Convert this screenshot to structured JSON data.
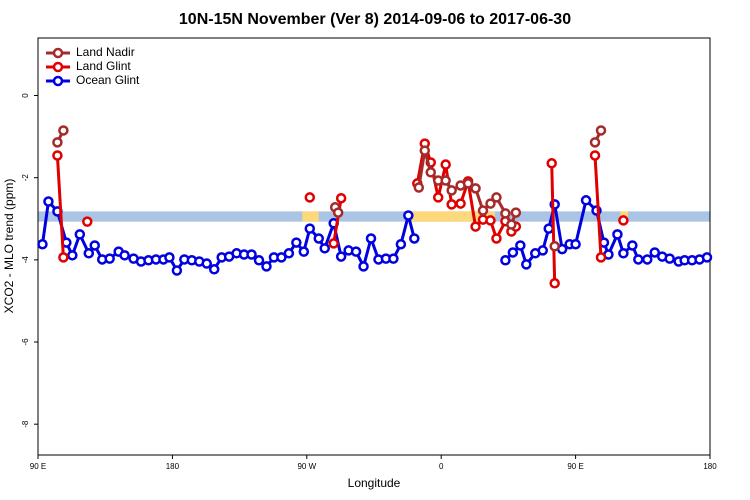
{
  "chart_data": {
    "type": "line",
    "title": "10N-15N November (Ver 8)   2014-09-06 to 2017-06-30",
    "x_label": "Longitude",
    "y_label": "XCO2 - MLO trend (ppm)",
    "xlim": [
      90,
      540
    ],
    "ylim": [
      -8.75,
      1.4
    ],
    "xticks": [
      {
        "value": 90,
        "label": "90 E"
      },
      {
        "value": 180,
        "label": "180"
      },
      {
        "value": 270,
        "label": "90 W"
      },
      {
        "value": 360,
        "label": "0"
      },
      {
        "value": 450,
        "label": "90 E"
      },
      {
        "value": 540,
        "label": "180"
      }
    ],
    "yticks": [
      0,
      -2,
      -4,
      -6,
      -8
    ],
    "legend": "top-left",
    "band": {
      "ymin": -3.07,
      "ymax": -2.82,
      "color": "#a9c4e4"
    },
    "highlights": {
      "color": "#fdd97c",
      "xranges": [
        [
          267,
          278
        ],
        [
          339,
          396
        ],
        [
          480,
          485
        ]
      ]
    },
    "series": [
      {
        "name": "Land Nadir",
        "color": "#a52a2a",
        "x": [
          103,
          107,
          200,
          289,
          291,
          320,
          345,
          349,
          353,
          358,
          363,
          367,
          373,
          378,
          383,
          388,
          393,
          397,
          403,
          407,
          410,
          420,
          436,
          450,
          463,
          467
        ],
        "values": [
          -1.14,
          -0.85,
          null,
          -2.72,
          -2.85,
          null,
          -2.24,
          -1.34,
          -1.87,
          -2.07,
          -2.07,
          -2.31,
          -2.19,
          -2.14,
          -2.26,
          -2.8,
          -2.63,
          -2.48,
          -2.87,
          -3.14,
          -2.85,
          null,
          -3.67,
          null,
          -1.14,
          -0.85
        ]
      },
      {
        "name": "Land Glint",
        "color": "#e00000",
        "x": [
          103,
          107,
          115,
          123,
          270,
          272,
          280,
          288,
          293,
          320,
          344,
          349,
          353,
          358,
          363,
          367,
          373,
          378,
          383,
          388,
          393,
          397,
          403,
          407,
          410,
          420,
          434,
          436,
          450,
          463,
          467,
          475,
          482
        ],
        "values": [
          -1.46,
          -3.94,
          null,
          -3.07,
          null,
          -2.48,
          null,
          -3.6,
          -2.5,
          null,
          -2.14,
          -1.17,
          -1.63,
          -2.48,
          -1.68,
          -2.65,
          -2.63,
          -2.09,
          -3.19,
          -3.02,
          -3.04,
          -3.48,
          -3.06,
          -3.31,
          -3.19,
          null,
          -1.65,
          -4.57,
          null,
          -1.46,
          -3.94,
          null,
          -3.04
        ]
      },
      {
        "name": "Ocean Glint",
        "color": "#0000e0",
        "x": [
          93,
          97,
          103,
          109,
          113,
          118,
          124,
          128,
          133,
          138,
          144,
          148,
          154,
          159,
          164,
          169,
          174,
          178,
          183,
          188,
          193,
          198,
          203,
          208,
          213,
          218,
          223,
          228,
          233,
          238,
          243,
          248,
          253,
          258,
          263,
          268,
          272,
          278,
          282,
          288,
          293,
          298,
          303,
          308,
          313,
          318,
          323,
          328,
          333,
          338,
          342,
          370,
          403,
          408,
          413,
          417,
          423,
          428,
          432,
          436,
          441,
          446,
          450,
          457,
          464,
          469,
          472,
          478,
          482,
          488,
          492,
          498,
          503,
          508,
          513,
          519,
          523,
          528,
          533,
          538
        ],
        "values": [
          -3.62,
          -2.58,
          -2.82,
          -3.58,
          -3.89,
          -3.38,
          -3.84,
          -3.65,
          -3.99,
          -3.97,
          -3.8,
          -3.89,
          -3.97,
          -4.04,
          -4.01,
          -3.99,
          -3.99,
          -3.94,
          -4.26,
          -3.99,
          -4.01,
          -4.04,
          -4.09,
          -4.23,
          -3.94,
          -3.92,
          -3.84,
          -3.87,
          -3.87,
          -4.01,
          -4.16,
          -3.94,
          -3.94,
          -3.84,
          -3.58,
          -3.8,
          -3.24,
          -3.48,
          -3.72,
          -3.11,
          -3.92,
          -3.77,
          -3.8,
          -4.16,
          -3.48,
          -3.99,
          -3.97,
          -3.97,
          -3.62,
          -2.92,
          -3.48,
          null,
          -4.01,
          -3.82,
          -3.65,
          -4.11,
          -3.84,
          -3.77,
          -3.24,
          -2.65,
          -3.74,
          -3.62,
          -3.62,
          -2.55,
          -2.8,
          -3.58,
          -3.87,
          -3.38,
          -3.84,
          -3.65,
          -3.99,
          -3.99,
          -3.82,
          -3.92,
          -3.97,
          -4.04,
          -4.01,
          -4.01,
          -3.99,
          -3.94
        ]
      }
    ]
  }
}
